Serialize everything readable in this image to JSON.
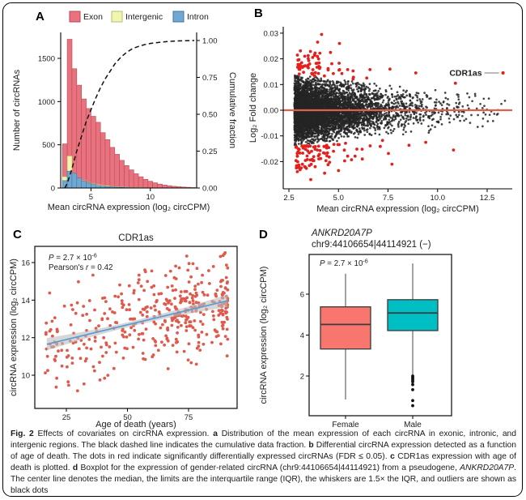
{
  "panel_labels": {
    "A": "A",
    "B": "B",
    "C": "C",
    "D": "D"
  },
  "chart_data": [
    {
      "id": "A",
      "type": "bar",
      "legend": [
        {
          "label": "Exon",
          "fill": "#E8737F",
          "stroke": "#B94A56"
        },
        {
          "label": "Intergenic",
          "fill": "#F1F5AF",
          "stroke": "#B9BD6E"
        },
        {
          "label": "Intron",
          "fill": "#6FA8D2",
          "stroke": "#46749E"
        }
      ],
      "xlabel": "Mean circRNA expression (log₂ circCPM)",
      "ylabel_left": "Number of circRNAs",
      "ylabel_right": "Cumulative fraction",
      "x_ticks": [
        5,
        10
      ],
      "y_ticks_left": [
        0,
        500,
        1000,
        1500
      ],
      "y_ticks_right": [
        {
          "label": "0.00",
          "v": 0
        },
        {
          "label": "0.25",
          "v": 0.25
        },
        {
          "label": "0.50",
          "v": 0.5
        },
        {
          "label": "0.75",
          "v": 0.75
        },
        {
          "label": "1.00",
          "v": 1
        }
      ],
      "xlim": [
        2.45,
        13.9
      ],
      "ylim_left": [
        0,
        1800
      ],
      "bin_start": 2.6,
      "bin_width": 0.4,
      "series": [
        {
          "name": "Exon",
          "values": [
            510,
            1720,
            1380,
            1190,
            1030,
            920,
            830,
            760,
            640,
            560,
            470,
            390,
            320,
            260,
            210,
            165,
            130,
            100,
            78,
            60,
            45,
            34,
            26,
            20,
            15,
            11,
            8,
            6
          ]
        },
        {
          "name": "Intergenic",
          "values": [
            130,
            370,
            155,
            110,
            85,
            65,
            50,
            40,
            32,
            25,
            19,
            15,
            11,
            9,
            7,
            5,
            4,
            3,
            2,
            2,
            1,
            1,
            1,
            0,
            0,
            0,
            0,
            0
          ]
        },
        {
          "name": "Intron",
          "values": [
            85,
            195,
            170,
            115,
            80,
            58,
            42,
            30,
            22,
            16,
            12,
            9,
            7,
            5,
            4,
            3,
            2,
            2,
            1,
            1,
            1,
            0,
            0,
            0,
            0,
            0,
            0,
            0
          ]
        }
      ],
      "cumulative": {
        "x": [
          2.8,
          3.0,
          3.4,
          3.8,
          4.2,
          4.6,
          5.0,
          5.4,
          5.8,
          6.2,
          6.6,
          7.0,
          7.5,
          8.0,
          8.5,
          9.0,
          9.5,
          10.0,
          11.0,
          12.0,
          13.0,
          13.7
        ],
        "y": [
          0.0,
          0.03,
          0.13,
          0.25,
          0.35,
          0.45,
          0.53,
          0.61,
          0.68,
          0.74,
          0.79,
          0.84,
          0.885,
          0.92,
          0.945,
          0.96,
          0.972,
          0.98,
          0.99,
          0.996,
          0.999,
          1.0
        ],
        "style": "dashed",
        "color": "#111111"
      }
    },
    {
      "id": "B",
      "type": "scatter",
      "xlabel": "Mean circRNA expression (log₂ circCPM)",
      "ylabel": "Log₂ Fold change",
      "x_ticks": [
        {
          "label": "2.5",
          "v": 2.5
        },
        {
          "label": "5.0",
          "v": 5
        },
        {
          "label": "7.5",
          "v": 7.5
        },
        {
          "label": "10.0",
          "v": 10
        },
        {
          "label": "12.5",
          "v": 12.5
        }
      ],
      "y_ticks": [
        {
          "label": "-0.02",
          "v": -0.02
        },
        {
          "label": "-0.01",
          "v": -0.01
        },
        {
          "label": "0.00",
          "v": 0
        },
        {
          "label": "0.01",
          "v": 0.01
        },
        {
          "label": "0.02",
          "v": 0.02
        },
        {
          "label": "0.03",
          "v": 0.03
        }
      ],
      "xlim": [
        2.2,
        13.8
      ],
      "ylim": [
        -0.0305,
        0.0325
      ],
      "zero_line": {
        "y": 0,
        "color": "#DB6150"
      },
      "background_points": {
        "n": 5200,
        "seed": 7,
        "color": "#252525",
        "opacity": 0.85,
        "radius": 1.35
      },
      "significant_points": {
        "n": 150,
        "seed": 11,
        "color": "#E4201C",
        "radius": 1.9
      },
      "extreme_points": [
        [
          4.15,
          0.0295
        ],
        [
          3.95,
          0.0265
        ],
        [
          5.05,
          0.026
        ],
        [
          4.6,
          0.0225
        ],
        [
          3.55,
          0.018
        ],
        [
          7.6,
          0.016
        ],
        [
          8.9,
          0.0145
        ],
        [
          10.9,
          0.0105
        ],
        [
          3.6,
          -0.027
        ],
        [
          4.3,
          -0.0245
        ],
        [
          5.0,
          -0.0235
        ],
        [
          3.3,
          -0.022
        ],
        [
          7.7,
          -0.021
        ],
        [
          6.2,
          -0.019
        ],
        [
          10.8,
          -0.0155
        ],
        [
          9.4,
          -0.0125
        ]
      ],
      "annotation": {
        "label": "CDR1as",
        "point": [
          13.3,
          0.0145
        ]
      }
    },
    {
      "id": "C",
      "type": "scatter",
      "title": "CDR1as",
      "xlabel": "Age of death (years)",
      "ylabel": "circRNA expression (log₂ circCPM)",
      "x_ticks": [
        25,
        50,
        75
      ],
      "y_ticks": [
        10,
        12,
        14,
        16
      ],
      "xlim": [
        11,
        96.5
      ],
      "ylim": [
        8.2,
        17.0
      ],
      "points": {
        "n": 420,
        "seed": 3,
        "color": "#DF5A4C",
        "radius": 1.9
      },
      "stats_lines": [
        [
          {
            "t": "P",
            "i": true
          },
          {
            "t": " = 2.7 × 10"
          },
          {
            "t": "-6",
            "sup": true
          }
        ],
        [
          {
            "t": "Pearson's "
          },
          {
            "t": "r",
            "i": true
          },
          {
            "t": " = 0.42"
          }
        ]
      ],
      "regression": {
        "x1": 17,
        "y1": 11.65,
        "x2": 91,
        "y2": 13.97,
        "line_color": "#5B9BD5",
        "band_color": "#BDBDBD"
      }
    },
    {
      "id": "D",
      "type": "boxplot",
      "title_line1": "ANKRD20A7P",
      "title_line2": "chr9:44106654|44114921 (−)",
      "annotation": [
        {
          "t": "P",
          "i": true
        },
        {
          "t": " = 2.7 × 10"
        },
        {
          "t": "-6",
          "sup": true
        }
      ],
      "ylabel": "circRNA expression (log₂ circCPM)",
      "y_ticks": [
        2,
        4,
        6
      ],
      "ylim": [
        0.05,
        7.95
      ],
      "categories": [
        "Female",
        "Male"
      ],
      "boxes": [
        {
          "category": "Female",
          "fill": "#F8766D",
          "whisker_low": 0.85,
          "q1": 3.32,
          "median": 4.52,
          "q3": 5.38,
          "whisker_high": 7.0,
          "outliers": []
        },
        {
          "category": "Male",
          "fill": "#00BFC4",
          "whisker_low": 2.07,
          "q1": 4.22,
          "median": 5.08,
          "q3": 5.73,
          "whisker_high": 7.5,
          "outliers": [
            2.0,
            1.93,
            1.87,
            1.8,
            1.72,
            1.58,
            1.33,
            0.8,
            0.55
          ]
        }
      ],
      "box_stroke": "#3A3A3A"
    }
  ],
  "caption": {
    "segments": [
      {
        "t": "Fig. 2",
        "b": true
      },
      {
        "t": " Effects of covariates on circRNA expression. "
      },
      {
        "t": "a",
        "b": true
      },
      {
        "t": " Distribution of the mean expression of each circRNA in exonic, intronic, and intergenic regions. The black dashed line indicates the cumulative data fraction. "
      },
      {
        "t": "b",
        "b": true
      },
      {
        "t": " Differential circRNA expression detected as a function of age of death. The dots in red indicate significantly differentially expressed circRNAs (FDR ≤ 0.05). "
      },
      {
        "t": "c",
        "b": true
      },
      {
        "t": " CDR1as expression with age of death is plotted. "
      },
      {
        "t": "d",
        "b": true
      },
      {
        "t": " Boxplot for the expression of gender-related circRNA (chr9:44106654|44114921) from a pseudogene, "
      },
      {
        "t": "ANKRD20A7P",
        "i": true
      },
      {
        "t": ". The center line denotes the median, the limits are the interquartile range (IQR), the whiskers are 1.5× the IQR, and outliers are shown as black dots"
      }
    ]
  }
}
